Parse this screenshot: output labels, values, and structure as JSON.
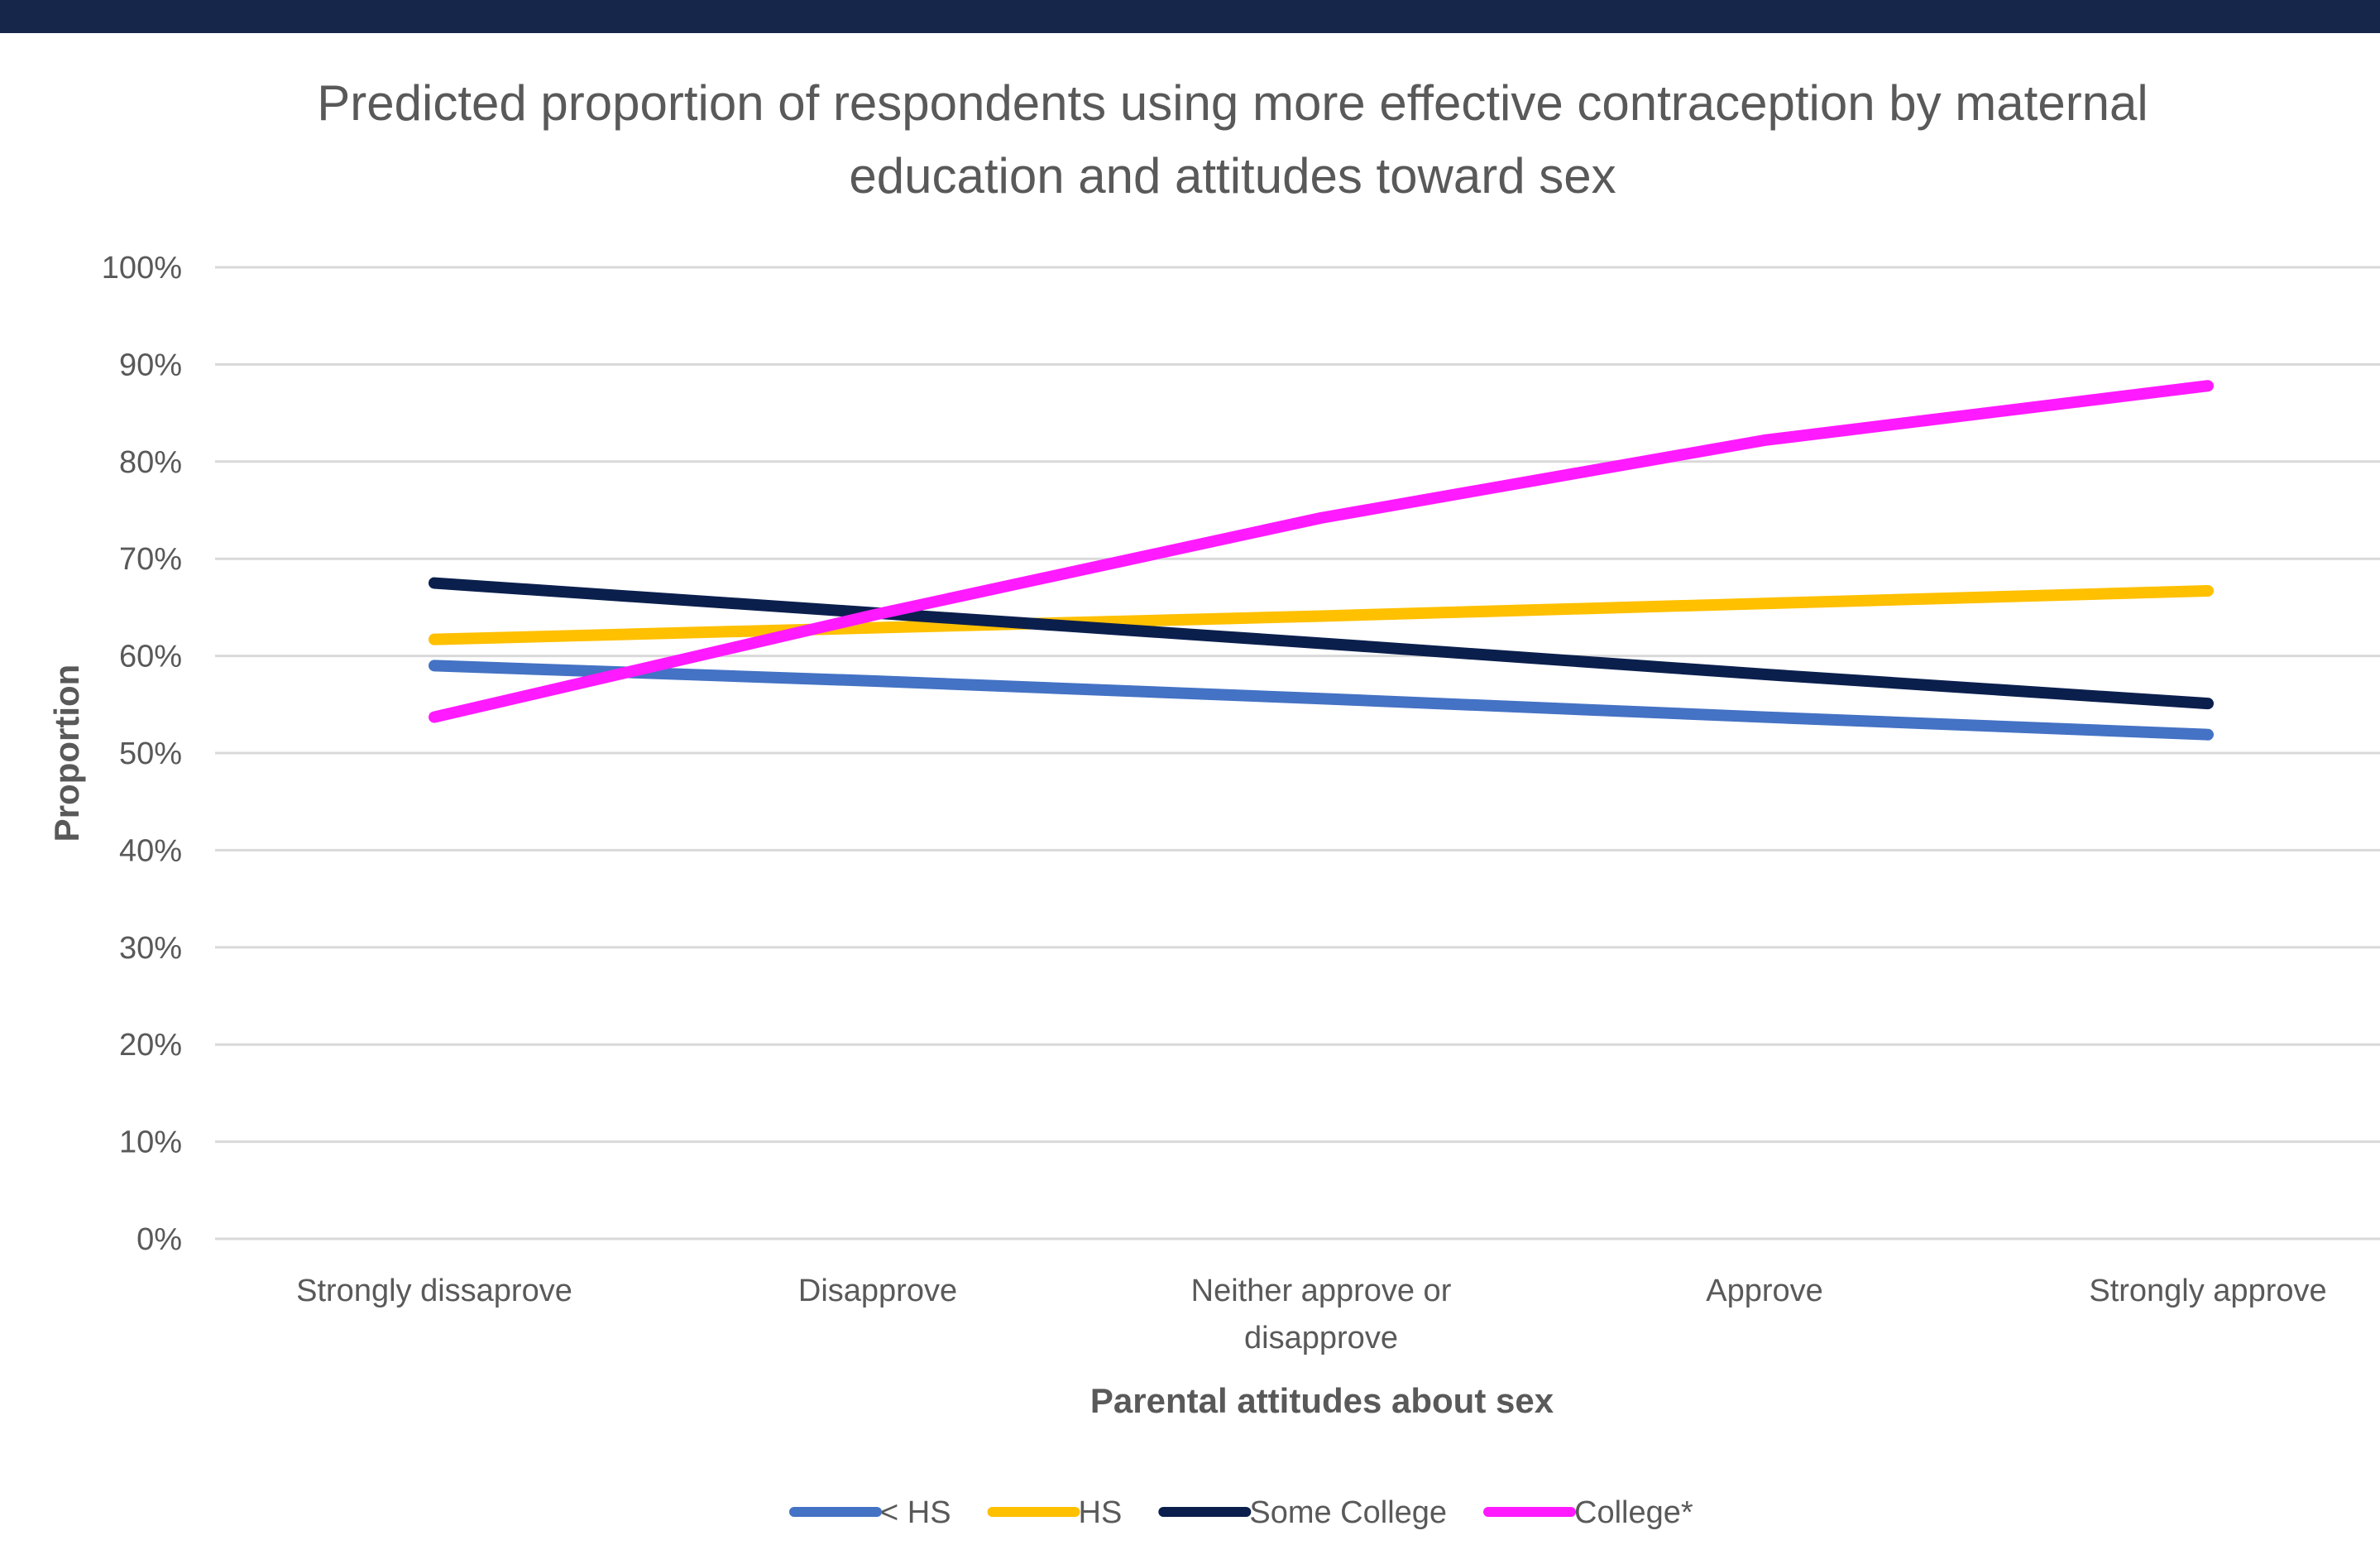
{
  "header": {
    "bar_color": "#15264a"
  },
  "chart_data": {
    "type": "line",
    "title_lines": [
      "Predicted proportion of respondents using more effective contraception by maternal",
      "education and attitudes toward sex"
    ],
    "xlabel": "Parental attitudes about sex",
    "ylabel": "Proportion",
    "categories": [
      [
        "Strongly dissaprove"
      ],
      [
        "Disapprove"
      ],
      [
        "Neither approve or",
        "disapprove"
      ],
      [
        "Approve"
      ],
      [
        "Strongly approve"
      ]
    ],
    "y_ticks": [
      "0%",
      "10%",
      "20%",
      "30%",
      "40%",
      "50%",
      "60%",
      "70%",
      "80%",
      "90%",
      "100%"
    ],
    "ylim": [
      0,
      1
    ],
    "grid": true,
    "legend_position": "bottom",
    "series": [
      {
        "name": "< HS",
        "color": "#4472c4",
        "values": [
          0.59,
          0.574,
          0.556,
          0.537,
          0.519
        ]
      },
      {
        "name": "HS",
        "color": "#ffc000",
        "values": [
          0.617,
          0.629,
          0.641,
          0.654,
          0.667
        ]
      },
      {
        "name": "Some College",
        "color": "#0b1f4d",
        "values": [
          0.675,
          0.644,
          0.613,
          0.581,
          0.551
        ]
      },
      {
        "name": "College*",
        "color": "#ff1aff",
        "values": [
          0.537,
          0.643,
          0.742,
          0.822,
          0.878
        ]
      }
    ]
  }
}
